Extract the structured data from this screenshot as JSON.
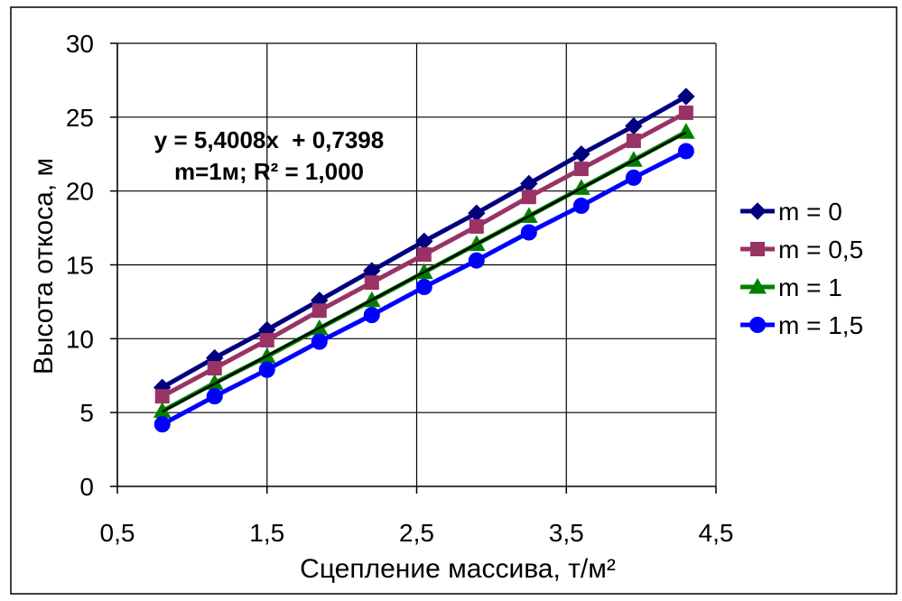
{
  "chart_data": {
    "type": "line",
    "xlabel": "Сцепление массива, т/м²",
    "ylabel": "Высота откоса, м",
    "xlim": [
      0.5,
      4.5
    ],
    "ylim": [
      0,
      30
    ],
    "xticks": [
      "0,5",
      "1,5",
      "2,5",
      "3,5",
      "4,5"
    ],
    "yticks": [
      "0",
      "5",
      "10",
      "15",
      "20",
      "25",
      "30"
    ],
    "grid": true,
    "legend": "right",
    "x": [
      0.8,
      1.15,
      1.5,
      1.85,
      2.2,
      2.55,
      2.9,
      3.25,
      3.6,
      3.95,
      4.3
    ],
    "series": [
      {
        "name": "m = 0",
        "color": "#000080",
        "marker": "diamond",
        "values": [
          6.7,
          8.7,
          10.6,
          12.6,
          14.6,
          16.6,
          18.5,
          20.5,
          22.5,
          24.4,
          26.4
        ]
      },
      {
        "name": "m = 0,5",
        "color": "#993366",
        "marker": "square",
        "values": [
          6.1,
          8.0,
          9.9,
          11.9,
          13.8,
          15.7,
          17.6,
          19.6,
          21.5,
          23.4,
          25.3
        ]
      },
      {
        "name": "m = 1",
        "color": "#008000",
        "marker": "triangle",
        "values": [
          5.1,
          7.0,
          8.8,
          10.7,
          12.6,
          14.5,
          16.4,
          18.3,
          20.2,
          22.1,
          24.0
        ]
      },
      {
        "name": "m = 1,5",
        "color": "#0000FF",
        "marker": "circle",
        "values": [
          4.2,
          6.1,
          7.9,
          9.8,
          11.6,
          13.5,
          15.3,
          17.2,
          19.0,
          20.9,
          22.7
        ]
      }
    ],
    "trendline": {
      "slope": 5.4008,
      "intercept": 0.7398,
      "color": "#000000",
      "equation_label": "y = 5,4008x  + 0,7398",
      "r2_label": "m=1м; R² = 1,000"
    }
  }
}
